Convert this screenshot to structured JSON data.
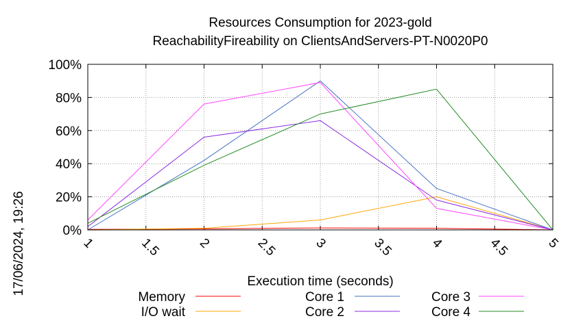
{
  "chart_data": {
    "type": "line",
    "title_lines": [
      "Resources Consumption for 2023-gold",
      "ReachabilityFireability on ClientsAndServers-PT-N0020P0"
    ],
    "xlabel": "Execution time (seconds)",
    "ylabel": "",
    "side_label": "17/06/2024, 19:26",
    "xlim": [
      1,
      5
    ],
    "ylim": [
      0,
      100
    ],
    "x_ticks": [
      "1",
      "1.5",
      "2",
      "2.5",
      "3",
      "3.5",
      "4",
      "4.5",
      "5"
    ],
    "y_ticks": [
      "0%",
      "20%",
      "40%",
      "60%",
      "80%",
      "100%"
    ],
    "grid": true,
    "legend_position": "bottom",
    "series": [
      {
        "name": "Memory",
        "color": "#ff0000",
        "x": [
          1,
          2,
          3,
          4,
          5
        ],
        "y": [
          0.3,
          0.6,
          1.2,
          1.0,
          0
        ]
      },
      {
        "name": "I/O wait",
        "color": "#ffa500",
        "x": [
          1,
          2,
          3,
          4,
          5
        ],
        "y": [
          0,
          1,
          6,
          20,
          0
        ]
      },
      {
        "name": "Core 1",
        "color": "#4472c4",
        "x": [
          1,
          2,
          3,
          4,
          5
        ],
        "y": [
          0,
          42,
          90,
          25,
          0
        ]
      },
      {
        "name": "Core 2",
        "color": "#8a2be2",
        "x": [
          1,
          2,
          3,
          4,
          5
        ],
        "y": [
          2,
          56,
          66,
          18,
          0
        ]
      },
      {
        "name": "Core 3",
        "color": "#ff44ff",
        "x": [
          1,
          2,
          3,
          4,
          5
        ],
        "y": [
          6,
          76,
          89,
          13,
          0
        ]
      },
      {
        "name": "Core 4",
        "color": "#228b22",
        "x": [
          1,
          2,
          3,
          4,
          5
        ],
        "y": [
          4,
          39,
          70,
          85,
          0
        ]
      }
    ]
  }
}
